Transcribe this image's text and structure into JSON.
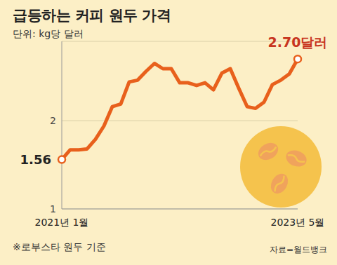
{
  "chart_data": {
    "type": "line",
    "title": "급등하는 커피 원두 가격",
    "subtitle": "단위: kg당 달러",
    "categories": [
      "2021년 1월",
      null,
      null,
      null,
      null,
      null,
      null,
      null,
      null,
      null,
      null,
      null,
      null,
      null,
      null,
      null,
      null,
      null,
      null,
      null,
      null,
      null,
      null,
      null,
      null,
      null,
      null,
      null,
      "2023년 5월"
    ],
    "values": [
      1.56,
      1.67,
      1.67,
      1.68,
      1.79,
      1.94,
      2.16,
      2.19,
      2.44,
      2.46,
      2.56,
      2.65,
      2.59,
      2.59,
      2.43,
      2.43,
      2.4,
      2.43,
      2.35,
      2.54,
      2.59,
      2.37,
      2.16,
      2.14,
      2.21,
      2.41,
      2.46,
      2.53,
      2.7
    ],
    "color": "#e8601c",
    "marker": "circle",
    "ylim": [
      1,
      2.9
    ],
    "yticks": [
      1,
      2
    ],
    "grid": true,
    "annotations": [
      {
        "category_index": 0,
        "text": "1.56"
      },
      {
        "category_index": 28,
        "text": "2.70달러"
      }
    ],
    "footnote": "※로부스타 원두 기준",
    "source": "자료=월드뱅크"
  }
}
